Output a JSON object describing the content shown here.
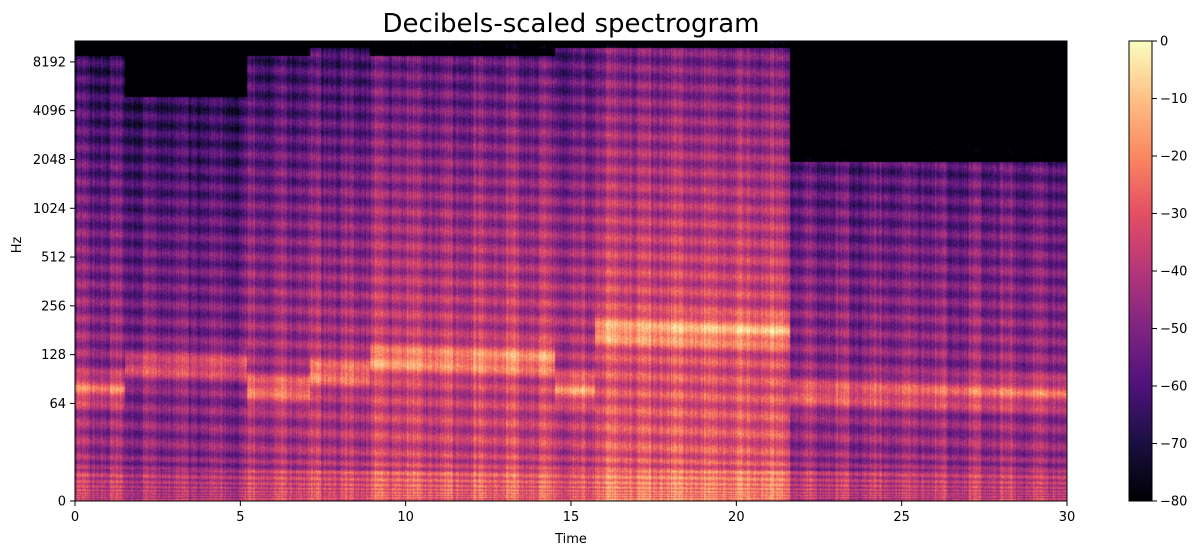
{
  "chart_data": {
    "type": "heatmap",
    "title": "Decibels-scaled spectrogram",
    "xlabel": "Time",
    "ylabel": "Hz",
    "xlim": [
      0,
      30
    ],
    "x_ticks": [
      0,
      5,
      10,
      15,
      20,
      25,
      30
    ],
    "y_scale": "symlog",
    "y_ticks": [
      0,
      64,
      128,
      256,
      512,
      1024,
      2048,
      4096,
      8192
    ],
    "colormap": "magma",
    "colorbar": {
      "min": -80,
      "max": 0,
      "ticks": [
        0,
        -10,
        -20,
        -30,
        -40,
        -50,
        -60,
        -70,
        -80
      ]
    },
    "segments": [
      {
        "start": 0.0,
        "end": 1.5,
        "bass_hz": 80,
        "hf_cutoff_hz": 9000,
        "level_db": -45
      },
      {
        "start": 1.5,
        "end": 5.2,
        "bass_hz": 110,
        "hf_cutoff_hz": 5000,
        "level_db": -48
      },
      {
        "start": 5.2,
        "end": 7.1,
        "bass_hz": 80,
        "hf_cutoff_hz": 9000,
        "level_db": -42
      },
      {
        "start": 7.1,
        "end": 8.9,
        "bass_hz": 100,
        "hf_cutoff_hz": 10000,
        "level_db": -40
      },
      {
        "start": 8.9,
        "end": 14.5,
        "bass_hz": 120,
        "hf_cutoff_hz": 9000,
        "level_db": -35
      },
      {
        "start": 14.5,
        "end": 15.7,
        "bass_hz": 80,
        "hf_cutoff_hz": 10000,
        "level_db": -38
      },
      {
        "start": 15.7,
        "end": 21.6,
        "bass_hz": 180,
        "hf_cutoff_hz": 10000,
        "level_db": -30
      },
      {
        "start": 21.6,
        "end": 30.0,
        "bass_hz": 75,
        "hf_cutoff_hz": 2000,
        "level_db": -45
      }
    ]
  }
}
